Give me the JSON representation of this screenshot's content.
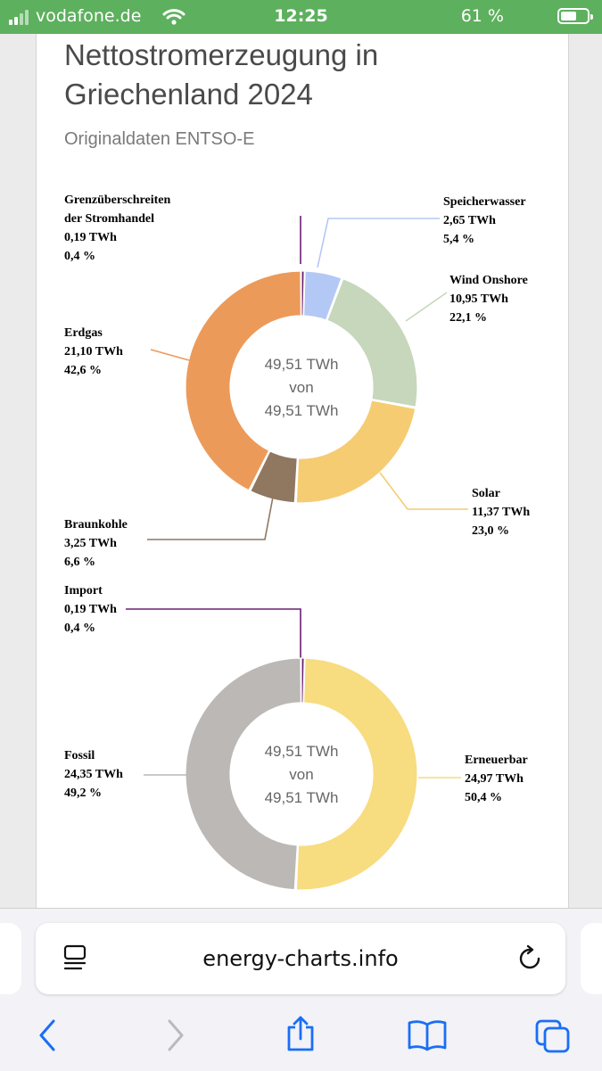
{
  "status": {
    "carrier": "vodafone.de",
    "time": "12:25",
    "battery": "61 %"
  },
  "page": {
    "title_line1": "Nettostromerzeugung in",
    "title_line2": "Griechenland 2024",
    "subtitle": "Originaldaten ENTSO-E"
  },
  "colors": {
    "grenz": "#6b1f73",
    "speicher": "#b3c8f5",
    "wind": "#c6d7bb",
    "solar": "#f5cc72",
    "braunkohle": "#8f7760",
    "erdgas": "#ec9a5a",
    "import": "#6b1f73",
    "erneuerbar": "#f7dc80",
    "fossil": "#bbb8b5"
  },
  "chart_data": [
    {
      "type": "pie",
      "variant": "donut",
      "title": "Nettostromerzeugung in Griechenland 2024",
      "center": {
        "line1": "49,51 TWh",
        "line2": "von",
        "line3": "49,51 TWh"
      },
      "slices": [
        {
          "key": "grenz",
          "label_lines": [
            "Grenzüberschreiten",
            "der Stromhandel"
          ],
          "value": 0.19,
          "value_text": "0,19 TWh",
          "pct_text": "0,4 %"
        },
        {
          "key": "speicher",
          "label_lines": [
            "Speicherwasser"
          ],
          "value": 2.65,
          "value_text": "2,65 TWh",
          "pct_text": "5,4 %"
        },
        {
          "key": "wind",
          "label_lines": [
            "Wind Onshore"
          ],
          "value": 10.95,
          "value_text": "10,95 TWh",
          "pct_text": "22,1 %"
        },
        {
          "key": "solar",
          "label_lines": [
            "Solar"
          ],
          "value": 11.37,
          "value_text": "11,37 TWh",
          "pct_text": "23,0 %"
        },
        {
          "key": "braunkohle",
          "label_lines": [
            "Braunkohle"
          ],
          "value": 3.25,
          "value_text": "3,25 TWh",
          "pct_text": "6,6 %"
        },
        {
          "key": "erdgas",
          "label_lines": [
            "Erdgas"
          ],
          "value": 21.1,
          "value_text": "21,10 TWh",
          "pct_text": "42,6 %"
        }
      ]
    },
    {
      "type": "pie",
      "variant": "donut",
      "center": {
        "line1": "49,51 TWh",
        "line2": "von",
        "line3": "49,51 TWh"
      },
      "slices": [
        {
          "key": "import",
          "label_lines": [
            "Import"
          ],
          "value": 0.19,
          "value_text": "0,19 TWh",
          "pct_text": "0,4 %"
        },
        {
          "key": "erneuerbar",
          "label_lines": [
            "Erneuerbar"
          ],
          "value": 24.97,
          "value_text": "24,97 TWh",
          "pct_text": "50,4 %"
        },
        {
          "key": "fossil",
          "label_lines": [
            "Fossil"
          ],
          "value": 24.35,
          "value_text": "24,35 TWh",
          "pct_text": "49,2 %"
        }
      ]
    }
  ],
  "browser": {
    "url": "energy-charts.info"
  }
}
